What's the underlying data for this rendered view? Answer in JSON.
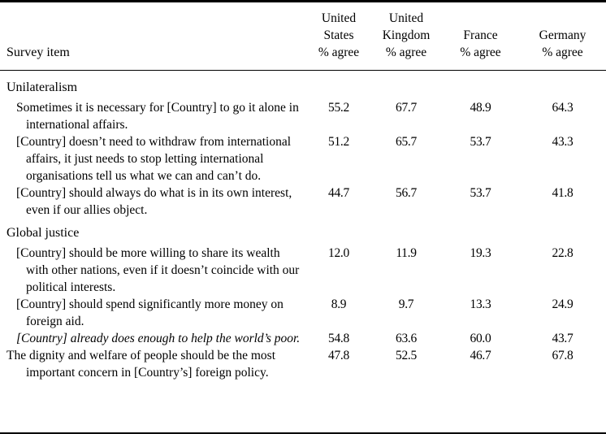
{
  "page": {
    "background": "#ffffff",
    "text_color": "#000000",
    "rule_color": "#000000"
  },
  "table": {
    "item_header": "Survey item",
    "columns": [
      {
        "lines": [
          "United",
          "States",
          "% agree"
        ]
      },
      {
        "lines": [
          "United",
          "Kingdom",
          "% agree"
        ]
      },
      {
        "lines": [
          "France",
          "% agree"
        ]
      },
      {
        "lines": [
          "Germany",
          "% agree"
        ]
      }
    ],
    "sections": [
      {
        "title": "Unilateralism",
        "rows": [
          {
            "text": "Sometimes it is necessary for [Country] to go it alone in international affairs.",
            "italic": false,
            "indented": true,
            "values": [
              "55.2",
              "67.7",
              "48.9",
              "64.3"
            ]
          },
          {
            "text": "[Country] doesn’t need to withdraw from international affairs, it just needs to stop letting international organisations tell us what we can and can’t do.",
            "italic": false,
            "indented": true,
            "values": [
              "51.2",
              "65.7",
              "53.7",
              "43.3"
            ]
          },
          {
            "text": "[Country] should always do what is in its own interest, even if our allies object.",
            "italic": false,
            "indented": true,
            "values": [
              "44.7",
              "56.7",
              "53.7",
              "41.8"
            ]
          }
        ]
      },
      {
        "title": "Global justice",
        "rows": [
          {
            "text": "[Country] should be more willing to share its wealth with other nations, even if it doesn’t coincide with our political interests.",
            "italic": false,
            "indented": true,
            "values": [
              "12.0",
              "11.9",
              "19.3",
              "22.8"
            ]
          },
          {
            "text": "[Country] should spend significantly more money on foreign aid.",
            "italic": false,
            "indented": true,
            "values": [
              "8.9",
              "9.7",
              "13.3",
              "24.9"
            ]
          },
          {
            "text": "[Country] already does enough to help the world’s poor.",
            "italic": true,
            "indented": true,
            "values": [
              "54.8",
              "63.6",
              "60.0",
              "43.7"
            ]
          },
          {
            "text": "The dignity and welfare of people should be the most important concern in [Country’s] foreign policy.",
            "italic": false,
            "indented": false,
            "values": [
              "47.8",
              "52.5",
              "46.7",
              "67.8"
            ]
          }
        ]
      }
    ]
  }
}
